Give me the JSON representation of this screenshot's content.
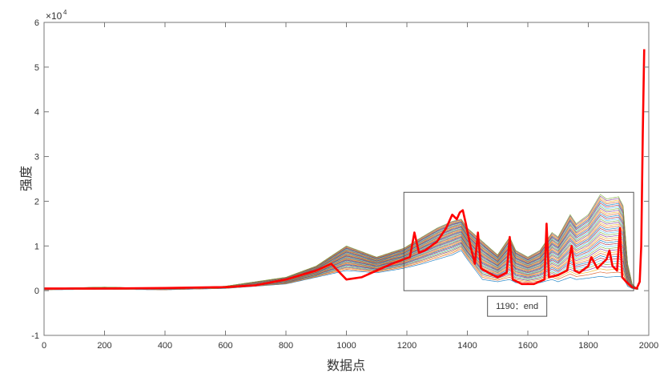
{
  "chart_data": {
    "type": "line",
    "title": "",
    "xlabel": "数据点",
    "ylabel": "强度",
    "xlim": [
      0,
      2000
    ],
    "ylim": [
      -1,
      6
    ],
    "y_exponent_label": "×10^4",
    "y_exponent": "4",
    "x_ticks": [
      "0",
      "200",
      "400",
      "600",
      "800",
      "1000",
      "1200",
      "1400",
      "1600",
      "1800",
      "2000"
    ],
    "y_ticks": [
      "-1",
      "0",
      "1",
      "2",
      "3",
      "4",
      "5",
      "6"
    ],
    "grid": false,
    "legend": "none",
    "highlight_series": {
      "color": "#ff0000",
      "x": [
        0,
        100,
        200,
        400,
        600,
        700,
        800,
        900,
        950,
        1000,
        1050,
        1100,
        1150,
        1190,
        1210,
        1225,
        1240,
        1260,
        1300,
        1330,
        1350,
        1365,
        1375,
        1385,
        1395,
        1410,
        1425,
        1435,
        1445,
        1470,
        1500,
        1530,
        1540,
        1550,
        1580,
        1620,
        1655,
        1662,
        1670,
        1700,
        1730,
        1745,
        1755,
        1770,
        1800,
        1810,
        1830,
        1860,
        1870,
        1880,
        1895,
        1905,
        1912,
        1925,
        1945,
        1960,
        1970,
        1975,
        1980,
        1985
      ],
      "y": [
        0.05,
        0.05,
        0.05,
        0.06,
        0.08,
        0.12,
        0.25,
        0.45,
        0.6,
        0.25,
        0.3,
        0.45,
        0.6,
        0.7,
        0.75,
        1.3,
        0.85,
        0.9,
        1.1,
        1.4,
        1.7,
        1.6,
        1.75,
        1.8,
        1.5,
        1.0,
        0.6,
        1.3,
        0.5,
        0.4,
        0.3,
        0.4,
        1.2,
        0.25,
        0.15,
        0.15,
        0.25,
        1.5,
        0.3,
        0.35,
        0.45,
        1.0,
        0.45,
        0.4,
        0.55,
        0.75,
        0.5,
        0.7,
        0.9,
        0.55,
        0.45,
        1.4,
        0.3,
        0.2,
        0.08,
        0.05,
        0.2,
        1.0,
        3.5,
        5.4
      ]
    },
    "sample_series_envelope": {
      "count": 40,
      "x": [
        0,
        200,
        400,
        600,
        800,
        900,
        1000,
        1100,
        1190,
        1250,
        1300,
        1350,
        1380,
        1400,
        1450,
        1500,
        1540,
        1560,
        1600,
        1640,
        1680,
        1700,
        1740,
        1760,
        1800,
        1840,
        1860,
        1900,
        1915,
        1930,
        1945,
        1960
      ],
      "upper": [
        0.05,
        0.08,
        0.05,
        0.1,
        0.3,
        0.55,
        1.0,
        0.75,
        0.95,
        1.2,
        1.4,
        1.55,
        1.6,
        1.4,
        1.1,
        0.8,
        1.2,
        0.9,
        0.75,
        0.9,
        1.3,
        1.2,
        1.7,
        1.5,
        1.7,
        2.15,
        2.05,
        2.1,
        1.9,
        0.6,
        0.15,
        0.05
      ],
      "lower": [
        0.02,
        0.03,
        0.02,
        0.05,
        0.15,
        0.3,
        0.45,
        0.4,
        0.5,
        0.6,
        0.7,
        0.8,
        0.9,
        0.7,
        0.25,
        0.2,
        0.25,
        0.18,
        0.15,
        0.18,
        0.25,
        0.2,
        0.3,
        0.25,
        0.28,
        0.32,
        0.3,
        0.32,
        0.3,
        0.1,
        0.05,
        0.03
      ]
    },
    "annotation": {
      "label": "1190：end",
      "x_range": [
        1190,
        1950
      ],
      "y_range": [
        0,
        2.2
      ]
    }
  }
}
